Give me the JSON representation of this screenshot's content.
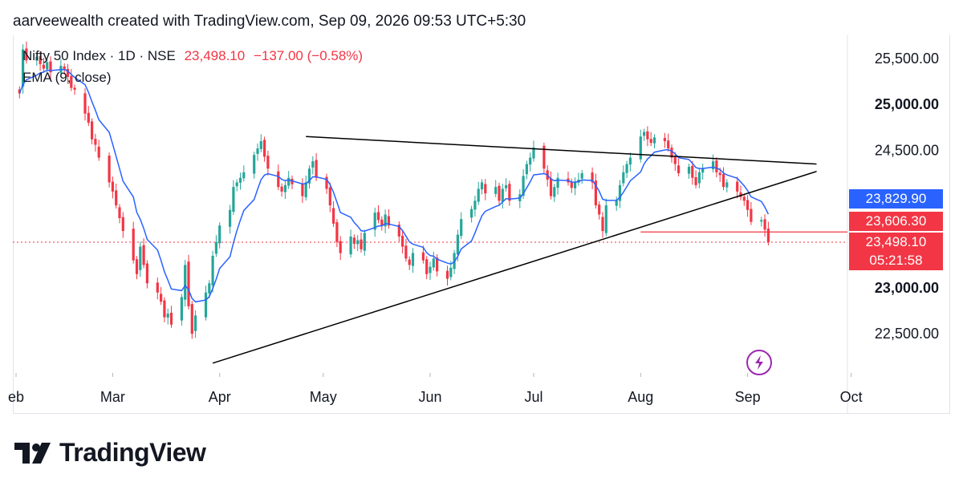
{
  "header": {
    "text": "aarveewealth created with TradingView.com, Sep 09, 2026 09:53 UTC+5:30"
  },
  "legend": {
    "symbol": "Nifty 50 Index · 1D · NSE",
    "last": "23,498.10",
    "change": "−137.00 (−0.58%)",
    "indicator": "EMA (9, close)"
  },
  "price_badges": {
    "ema": "23,829.90",
    "level": "23,606.30",
    "last": "23,498.10",
    "countdown": "05:21:58"
  },
  "brand": {
    "name": "TradingView"
  },
  "colors": {
    "up": "#26a69a",
    "down": "#f23645",
    "ema": "#2962ff",
    "trendline": "#000000",
    "badge_blue": "#2962ff",
    "badge_red": "#f23645",
    "icon_purple": "#9c27b0"
  },
  "chart_data": {
    "type": "candlestick",
    "title": "Nifty 50 Index · 1D · NSE",
    "ylim": [
      22000,
      25800
    ],
    "y_ticks": [
      "22,500.00",
      "23,000.00",
      "24,500.00",
      "25,000.00",
      "25,500.00"
    ],
    "y_tick_values": [
      22500,
      23000,
      24500,
      25000,
      25500
    ],
    "x_ticks": [
      {
        "label": "eb",
        "day": 0
      },
      {
        "label": "Mar",
        "day": 28
      },
      {
        "label": "Apr",
        "day": 59
      },
      {
        "label": "May",
        "day": 89
      },
      {
        "label": "Jun",
        "day": 120
      },
      {
        "label": "Jul",
        "day": 150
      },
      {
        "label": "Aug",
        "day": 181
      },
      {
        "label": "Sep",
        "day": 212
      },
      {
        "label": "Oct",
        "day": 242
      }
    ],
    "close_series": [
      [
        1,
        25120
      ],
      [
        2,
        25600
      ],
      [
        3,
        25480
      ],
      [
        6,
        25520
      ],
      [
        7,
        25440
      ],
      [
        8,
        25390
      ],
      [
        9,
        25460
      ],
      [
        10,
        25350
      ],
      [
        13,
        25420
      ],
      [
        14,
        25380
      ],
      [
        15,
        25300
      ],
      [
        16,
        25180
      ],
      [
        17,
        25160
      ],
      [
        20,
        24900
      ],
      [
        21,
        24800
      ],
      [
        22,
        24620
      ],
      [
        23,
        24560
      ],
      [
        24,
        24420
      ],
      [
        27,
        24150
      ],
      [
        28,
        24050
      ],
      [
        29,
        23900
      ],
      [
        30,
        23760
      ],
      [
        31,
        23620
      ],
      [
        34,
        23300
      ],
      [
        35,
        23150
      ],
      [
        36,
        23450
      ],
      [
        37,
        23250
      ],
      [
        38,
        23050
      ],
      [
        41,
        22950
      ],
      [
        42,
        22850
      ],
      [
        43,
        22680
      ],
      [
        44,
        22720
      ],
      [
        45,
        22600
      ],
      [
        48,
        22900
      ],
      [
        49,
        23250
      ],
      [
        50,
        22800
      ],
      [
        51,
        22500
      ],
      [
        52,
        22700
      ],
      [
        55,
        22950
      ],
      [
        56,
        23050
      ],
      [
        57,
        23350
      ],
      [
        58,
        23500
      ],
      [
        59,
        23680
      ],
      [
        62,
        23850
      ],
      [
        63,
        24100
      ],
      [
        64,
        24150
      ],
      [
        65,
        24200
      ],
      [
        66,
        24260
      ],
      [
        69,
        24450
      ],
      [
        70,
        24520
      ],
      [
        71,
        24600
      ],
      [
        72,
        24430
      ],
      [
        73,
        24300
      ],
      [
        76,
        24100
      ],
      [
        77,
        24050
      ],
      [
        78,
        24120
      ],
      [
        79,
        24200
      ],
      [
        80,
        24130
      ],
      [
        83,
        24000
      ],
      [
        84,
        24150
      ],
      [
        85,
        24300
      ],
      [
        86,
        24380
      ],
      [
        87,
        24200
      ],
      [
        90,
        24080
      ],
      [
        91,
        23900
      ],
      [
        92,
        23700
      ],
      [
        93,
        23500
      ],
      [
        94,
        23380
      ],
      [
        97,
        23560
      ],
      [
        98,
        23480
      ],
      [
        99,
        23520
      ],
      [
        100,
        23420
      ],
      [
        101,
        23600
      ],
      [
        104,
        23820
      ],
      [
        105,
        23740
      ],
      [
        106,
        23680
      ],
      [
        107,
        23800
      ],
      [
        108,
        23680
      ],
      [
        111,
        23560
      ],
      [
        112,
        23450
      ],
      [
        113,
        23320
      ],
      [
        114,
        23250
      ],
      [
        115,
        23380
      ],
      [
        118,
        23300
      ],
      [
        119,
        23150
      ],
      [
        120,
        23230
      ],
      [
        121,
        23320
      ],
      [
        122,
        23180
      ],
      [
        125,
        23100
      ],
      [
        126,
        23220
      ],
      [
        127,
        23380
      ],
      [
        128,
        23580
      ],
      [
        129,
        23750
      ],
      [
        132,
        23860
      ],
      [
        133,
        23950
      ],
      [
        134,
        24080
      ],
      [
        135,
        24150
      ],
      [
        136,
        24030
      ],
      [
        139,
        24100
      ],
      [
        140,
        23950
      ],
      [
        141,
        24080
      ],
      [
        142,
        24120
      ],
      [
        143,
        23950
      ],
      [
        146,
        24020
      ],
      [
        147,
        24220
      ],
      [
        148,
        24350
      ],
      [
        149,
        24420
      ],
      [
        150,
        24530
      ],
      [
        153,
        24300
      ],
      [
        154,
        24180
      ],
      [
        155,
        24000
      ],
      [
        156,
        24100
      ],
      [
        157,
        24200
      ],
      [
        160,
        24150
      ],
      [
        161,
        24090
      ],
      [
        162,
        24150
      ],
      [
        163,
        24180
      ],
      [
        164,
        24250
      ],
      [
        167,
        24150
      ],
      [
        168,
        23900
      ],
      [
        169,
        23800
      ],
      [
        170,
        23620
      ],
      [
        171,
        23900
      ],
      [
        174,
        23960
      ],
      [
        175,
        24120
      ],
      [
        176,
        24260
      ],
      [
        177,
        24350
      ],
      [
        178,
        24420
      ],
      [
        181,
        24650
      ],
      [
        182,
        24700
      ],
      [
        183,
        24620
      ],
      [
        184,
        24580
      ],
      [
        185,
        24640
      ],
      [
        188,
        24600
      ],
      [
        189,
        24520
      ],
      [
        190,
        24420
      ],
      [
        191,
        24350
      ],
      [
        192,
        24250
      ],
      [
        195,
        24320
      ],
      [
        196,
        24200
      ],
      [
        197,
        24120
      ],
      [
        198,
        24260
      ],
      [
        199,
        24300
      ],
      [
        202,
        24380
      ],
      [
        203,
        24260
      ],
      [
        204,
        24230
      ],
      [
        205,
        24100
      ],
      [
        206,
        24150
      ],
      [
        209,
        24050
      ],
      [
        210,
        23990
      ],
      [
        211,
        23950
      ],
      [
        212,
        23850
      ],
      [
        213,
        23720
      ],
      [
        216,
        23740
      ],
      [
        217,
        23635
      ],
      [
        218,
        23498
      ]
    ],
    "ema_period": 9,
    "ema_last": 23829.9,
    "trendlines": [
      {
        "from": [
          57,
          22180
        ],
        "to": [
          232,
          24270
        ]
      },
      {
        "from": [
          84,
          24650
        ],
        "to": [
          232,
          24350
        ]
      },
      {
        "from": [
          181,
          23610
        ],
        "to": [
          215,
          23610
        ]
      }
    ],
    "horizontal_level": 23606.3,
    "last_price": 23498.1
  }
}
